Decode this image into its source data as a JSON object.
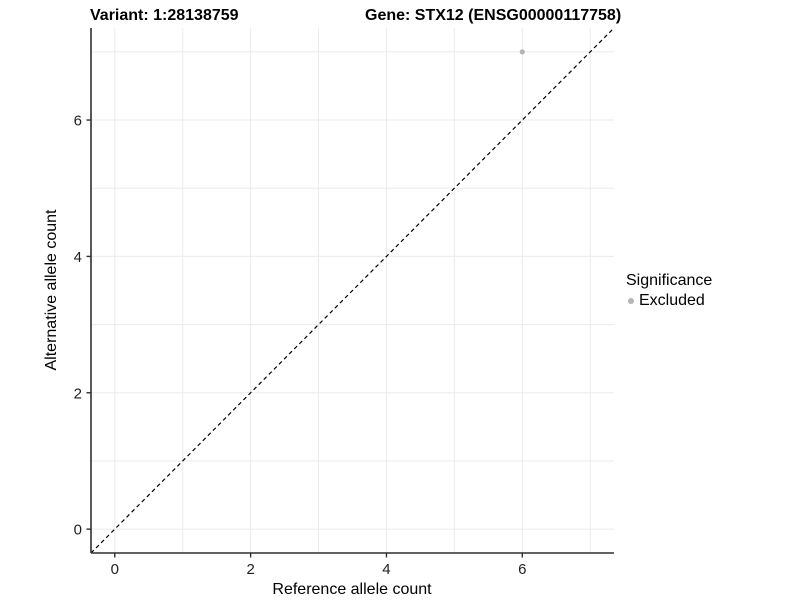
{
  "title": {
    "variant": "Variant: 1:28138759",
    "gene": "Gene: STX12 (ENSG00000117758)"
  },
  "chart_data": {
    "type": "scatter",
    "xlabel": "Reference allele count",
    "ylabel": "Alternative allele count",
    "xlim": [
      -0.35,
      7.35
    ],
    "ylim": [
      -0.35,
      7.35
    ],
    "xticks": [
      0,
      2,
      4,
      6
    ],
    "yticks": [
      0,
      2,
      4,
      6
    ],
    "grid_positions": [
      0,
      1,
      2,
      3,
      4,
      5,
      6,
      7
    ],
    "grid": true,
    "points": [
      {
        "x": 6,
        "y": 7,
        "series": "Excluded"
      }
    ],
    "reference_line": {
      "type": "identity",
      "slope": 1,
      "intercept": 0,
      "style": "dashed"
    },
    "legend": {
      "title": "Significance",
      "position": "right",
      "entries": [
        {
          "label": "Excluded",
          "color": "#b5b5b5"
        }
      ]
    }
  },
  "colors": {
    "point": "#b5b5b5",
    "grid": "#ebebeb",
    "axis_line": "#2f2f2f",
    "reference_line": "#000000",
    "text": "#000000"
  }
}
